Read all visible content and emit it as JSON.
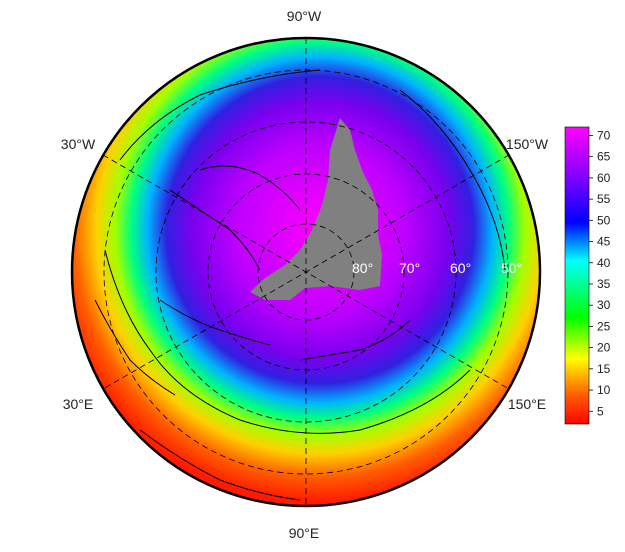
{
  "map": {
    "projection": "north-polar-stereographic",
    "land_color": "#808080",
    "coast_color": "#000000",
    "boundary_color": "#000000",
    "longitude_labels": [
      "90°W",
      "30°W",
      "150°W",
      "30°E",
      "150°E",
      "90°E"
    ],
    "latitude_labels": [
      "80°",
      "70°",
      "60°",
      "50°"
    ]
  },
  "colorbar": {
    "ticks": [
      "70",
      "65",
      "60",
      "55",
      "50",
      "45",
      "40",
      "35",
      "30",
      "25",
      "20",
      "15",
      "10",
      "5"
    ],
    "range": [
      2,
      72
    ],
    "colors": [
      "#ff0000",
      "#ff8000",
      "#ffff00",
      "#00ff00",
      "#00ffff",
      "#0000ff",
      "#8000ff",
      "#ff00ff"
    ]
  }
}
